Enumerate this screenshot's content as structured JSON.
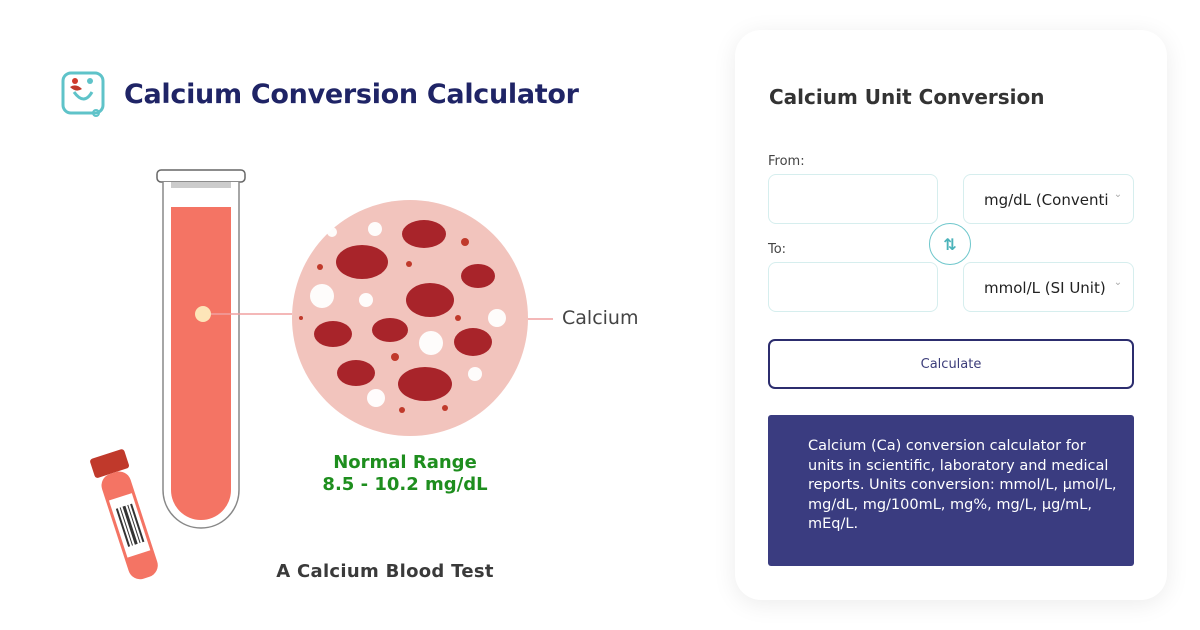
{
  "header": {
    "title": "Calcium Conversion Calculator",
    "logo": "stethoscope-heart-logo"
  },
  "illustration": {
    "label": "Calcium",
    "normal_range_title": "Normal Range",
    "normal_range_value": "8.5 - 10.2 mg/dL",
    "caption": "A Calcium Blood Test"
  },
  "card": {
    "title": "Calcium Unit Conversion",
    "from_label": "From:",
    "from_value": "",
    "from_unit": "mg/dL (Conventional Unit)",
    "to_label": "To:",
    "to_value": "",
    "to_unit": "mmol/L (SI Unit)",
    "swap_icon": "swap-arrows-icon",
    "calculate_label": "Calculate",
    "info": "Calcium (Ca) conversion calculator for units in scientific, laboratory and medical reports. Units conversion: mmol/L, μmol/L, mg/dL, mg/100mL, mg%, mg/L, μg/mL, mEq/L."
  },
  "colors": {
    "title": "#1f2466",
    "accent": "#4bb3ba",
    "range": "#1e8e1e",
    "info_bg": "#3a3c80"
  }
}
